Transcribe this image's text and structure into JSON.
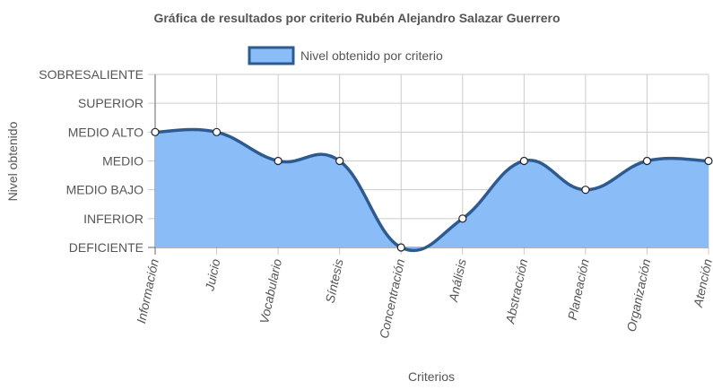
{
  "chart_data": {
    "type": "area",
    "title": "Gráfica de resultados por criterio Rubén Alejandro Salazar Guerrero",
    "xlabel": "Criterios",
    "ylabel": "Nivel obtenido",
    "categories": [
      "Información",
      "Juicio",
      "Vocabulario",
      "Síntesis",
      "Concentración",
      "Análisis",
      "Abstracción",
      "Planeación",
      "Organización",
      "Atención"
    ],
    "y_levels": [
      "DEFICIENTE",
      "INFERIOR",
      "MEDIO BAJO",
      "MEDIO",
      "MEDIO ALTO",
      "SUPERIOR",
      "SOBRESALIENTE"
    ],
    "series": [
      {
        "name": "Nivel obtenido por criterio",
        "values": [
          4,
          4,
          3,
          3,
          0,
          1,
          3,
          2,
          3,
          3
        ]
      }
    ],
    "ylim": [
      0,
      6
    ],
    "grid": true,
    "legend_position": "top",
    "colors": {
      "fill": "#8abcf8",
      "line": "#2e5b8f",
      "point_fill": "#ffffff",
      "point_stroke": "#222222",
      "grid": "#cccccc",
      "axis": "#666666"
    }
  }
}
